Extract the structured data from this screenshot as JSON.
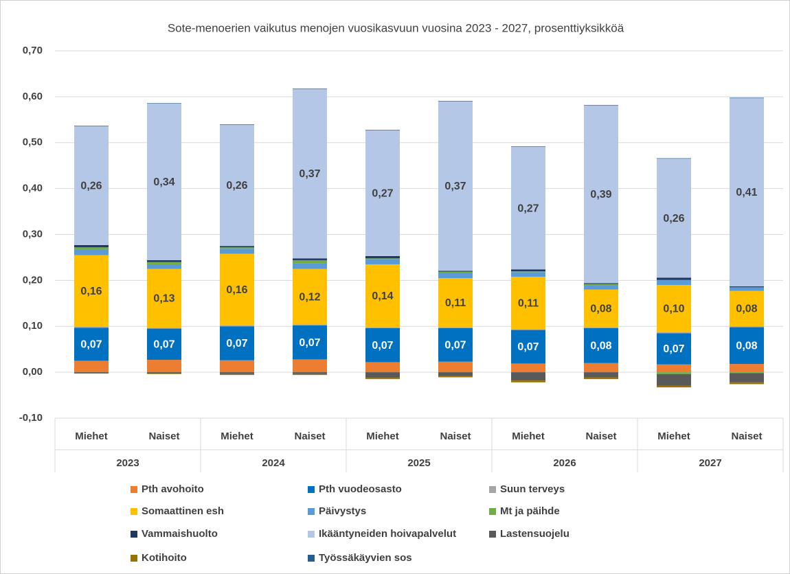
{
  "chart_data": {
    "type": "stacked_bar",
    "title": "Sote-menoerien vaikutus menojen vuosikasvuun vuosina 2023 - 2027, prosenttiyksikköä",
    "categories": [
      "Miehet",
      "Naiset",
      "Miehet",
      "Naiset",
      "Miehet",
      "Naiset",
      "Miehet",
      "Naiset",
      "Miehet",
      "Naiset"
    ],
    "groups": [
      "2023",
      "2024",
      "2025",
      "2026",
      "2027"
    ],
    "ylim": [
      -0.1,
      0.7
    ],
    "yticks": [
      {
        "value": -0.1,
        "label": "-0,10"
      },
      {
        "value": 0,
        "label": "0,00"
      },
      {
        "value": 0.1,
        "label": "0,10"
      },
      {
        "value": 0.2,
        "label": "0,20"
      },
      {
        "value": 0.3,
        "label": "0,30"
      },
      {
        "value": 0.4,
        "label": "0,40"
      },
      {
        "value": 0.5,
        "label": "0,50"
      },
      {
        "value": 0.6,
        "label": "0,60"
      },
      {
        "value": 0.7,
        "label": "0,70"
      }
    ],
    "grid": true,
    "legend": "bottom",
    "series": [
      {
        "name": "Pth avohoito",
        "color": "#ED7D31",
        "values": [
          0.025,
          0.027,
          0.026,
          0.028,
          0.022,
          0.023,
          0.019,
          0.02,
          0.017,
          0.018
        ]
      },
      {
        "name": "Pth vuodeosasto",
        "color": "#0070C0",
        "values": [
          0.072,
          0.068,
          0.074,
          0.074,
          0.074,
          0.073,
          0.073,
          0.076,
          0.068,
          0.08
        ],
        "value_labels": [
          "0,07",
          "0,07",
          "0,07",
          "0,07",
          "0,07",
          "0,07",
          "0,07",
          "0,08",
          "0,07",
          "0,08"
        ]
      },
      {
        "name": "Suun terveys",
        "color": "#A5A5A5",
        "values": [
          0.002,
          0.002,
          0.002,
          0.002,
          0.002,
          0.002,
          0.002,
          0.002,
          0.002,
          0.002
        ]
      },
      {
        "name": "Somaattinen esh",
        "color": "#FFC000",
        "values": [
          0.156,
          0.128,
          0.156,
          0.121,
          0.137,
          0.107,
          0.114,
          0.082,
          0.103,
          0.077
        ],
        "value_labels": [
          "0,16",
          "0,13",
          "0,16",
          "0,12",
          "0,14",
          "0,11",
          "0,11",
          "0,08",
          "0,10",
          "0,08"
        ]
      },
      {
        "name": "Päivystys",
        "color": "#5B9BD5",
        "values": [
          0.012,
          0.01,
          0.011,
          0.012,
          0.011,
          0.012,
          0.01,
          0.01,
          0.011,
          0.008
        ]
      },
      {
        "name": "Mt ja päihde",
        "color": "#70AD47",
        "values": [
          0.005,
          0.005,
          0.003,
          0.007,
          0.002,
          0.002,
          0.002,
          0.002,
          -0.004,
          -0.002
        ]
      },
      {
        "name": "Vammaishuolto",
        "color": "#1F3864",
        "values": [
          0.005,
          0.004,
          0.003,
          0.004,
          0.005,
          0.002,
          0.004,
          0.002,
          0.005,
          0.002
        ]
      },
      {
        "name": "Ikääntyneiden hoivapalvelut",
        "color": "#B4C7E7",
        "values": [
          0.259,
          0.341,
          0.264,
          0.369,
          0.274,
          0.369,
          0.267,
          0.387,
          0.259,
          0.41
        ],
        "value_labels": [
          "0,26",
          "0,34",
          "0,26",
          "0,37",
          "0,27",
          "0,37",
          "0,27",
          "0,39",
          "0,26",
          "0,41"
        ]
      },
      {
        "name": "Lastensuojelu",
        "color": "#595959",
        "values": [
          -0.002,
          -0.003,
          -0.004,
          -0.004,
          -0.012,
          -0.008,
          -0.018,
          -0.011,
          -0.025,
          -0.02
        ]
      },
      {
        "name": "Kotihoito",
        "color": "#997300",
        "values": [
          -0.001,
          -0.001,
          -0.002,
          -0.002,
          -0.003,
          -0.003,
          -0.004,
          -0.004,
          -0.004,
          -0.004
        ]
      },
      {
        "name": "Työssäkäyvien sos",
        "color": "#255E91",
        "values": [
          0.001,
          0.001,
          0.001,
          0.001,
          0.001,
          0.001,
          0.001,
          0.001,
          0.001,
          0.001
        ]
      }
    ]
  }
}
